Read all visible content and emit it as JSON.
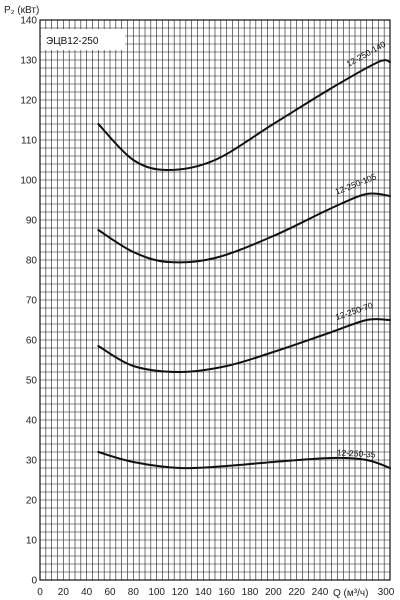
{
  "chart_data": {
    "type": "line",
    "title": "ЭЦВ12-250",
    "ylabel": "P₂ (кВт)",
    "xlabel": "Q (м³/ч)",
    "xlim": [
      0,
      300
    ],
    "ylim": [
      0,
      140
    ],
    "x_ticks": [
      "0",
      "20",
      "40",
      "60",
      "80",
      "100",
      "120",
      "140",
      "160",
      "180",
      "200",
      "220",
      "240",
      "",
      "",
      "300"
    ],
    "y_ticks": [
      "0",
      "10",
      "20",
      "30",
      "40",
      "50",
      "60",
      "70",
      "80",
      "90",
      "100",
      "110",
      "120",
      "130",
      "140"
    ],
    "grid": "on",
    "series": [
      {
        "name": "12-250-140",
        "x": [
          50,
          80,
          110,
          150,
          200,
          250,
          290,
          300
        ],
        "y": [
          114,
          105,
          102.5,
          105,
          114,
          123,
          129.5,
          129.5
        ]
      },
      {
        "name": "12-250-105",
        "x": [
          50,
          80,
          110,
          150,
          200,
          250,
          280,
          300
        ],
        "y": [
          87.5,
          82,
          79.5,
          80.5,
          86,
          93,
          96.5,
          96
        ]
      },
      {
        "name": "12-250-70",
        "x": [
          50,
          80,
          120,
          160,
          200,
          250,
          280,
          300
        ],
        "y": [
          58.5,
          53.5,
          52,
          53.5,
          57,
          62,
          65,
          65
        ]
      },
      {
        "name": "12-250-35",
        "x": [
          50,
          80,
          120,
          160,
          200,
          250,
          280,
          300
        ],
        "y": [
          32,
          29.5,
          28,
          28.5,
          29.5,
          30.5,
          30,
          28
        ]
      }
    ]
  }
}
